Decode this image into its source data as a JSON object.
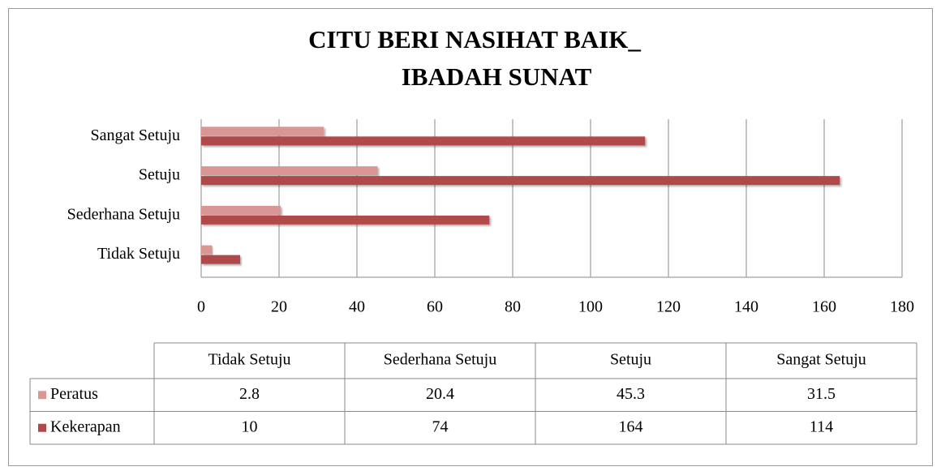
{
  "chart_data": {
    "type": "bar",
    "orientation": "horizontal",
    "title": [
      "CITU BERI NASIHAT BAIK_",
      "IBADAH SUNAT"
    ],
    "categories": [
      "Tidak Setuju",
      "Sederhana Setuju",
      "Setuju",
      "Sangat Setuju"
    ],
    "series": [
      {
        "name": "Peratus",
        "color": "#d99694",
        "values": [
          2.8,
          20.4,
          45.3,
          31.5
        ]
      },
      {
        "name": "Kekerapan",
        "color": "#b0494a",
        "values": [
          10,
          74,
          164,
          114
        ]
      }
    ],
    "xlim": [
      0,
      180
    ],
    "xticks": [
      0,
      20,
      40,
      60,
      80,
      100,
      120,
      140,
      160,
      180
    ],
    "grid": true,
    "data_table": true
  }
}
